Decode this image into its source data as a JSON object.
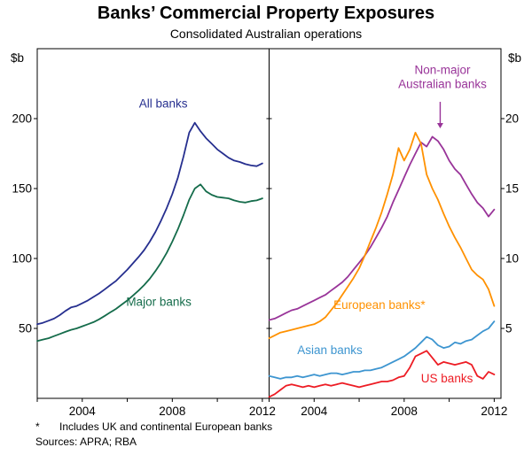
{
  "title": "Banks’ Commercial Property Exposures",
  "subtitle": "Consolidated Australian operations",
  "axis_units": {
    "left": "$b",
    "right": "$b"
  },
  "footnote": {
    "marker": "*",
    "text": "Includes UK and continental European banks"
  },
  "sources": "Sources: APRA; RBA",
  "chart_data": [
    {
      "type": "line",
      "panel": "left",
      "ylabel": "$b",
      "ylim": [
        0,
        250
      ],
      "yticks": [
        50,
        100,
        150,
        200
      ],
      "xticks_labeled": [
        2004,
        2008,
        2012
      ],
      "xticks_minor": [
        2002,
        2004,
        2006,
        2008,
        2010,
        2012
      ],
      "x": [
        2002,
        2002.25,
        2002.5,
        2002.75,
        2003,
        2003.25,
        2003.5,
        2003.75,
        2004,
        2004.25,
        2004.5,
        2004.75,
        2005,
        2005.25,
        2005.5,
        2005.75,
        2006,
        2006.25,
        2006.5,
        2006.75,
        2007,
        2007.25,
        2007.5,
        2007.75,
        2008,
        2008.25,
        2008.5,
        2008.75,
        2009,
        2009.25,
        2009.5,
        2009.75,
        2010,
        2010.25,
        2010.5,
        2010.75,
        2011,
        2011.25,
        2011.5,
        2011.75,
        2012
      ],
      "series": [
        {
          "name": "All banks",
          "color": "#262f8f",
          "values": [
            53,
            54,
            55.5,
            57,
            59.5,
            62.5,
            65,
            66,
            68,
            70,
            72.5,
            75,
            78,
            81,
            84,
            88,
            92,
            96.5,
            101,
            106,
            112,
            119,
            127,
            136,
            146,
            158,
            173,
            190,
            197,
            191,
            186,
            182,
            178,
            175,
            172,
            170,
            169,
            167.5,
            166.5,
            166,
            168
          ]
        },
        {
          "name": "Major banks",
          "color": "#156c4b",
          "values": [
            41,
            42,
            43,
            44.5,
            46,
            47.5,
            49,
            50,
            51.5,
            53,
            54.5,
            56.5,
            59,
            61.5,
            64,
            67,
            70,
            73.5,
            77,
            81,
            85.5,
            91,
            97,
            104,
            112,
            121,
            131,
            142,
            150,
            153,
            148,
            145.5,
            144,
            143.5,
            143,
            141.5,
            140.5,
            140,
            141,
            141.5,
            143
          ]
        }
      ],
      "labels": [
        {
          "text": "All banks",
          "x": 2007.6,
          "y": 208,
          "color": "#262f8f"
        },
        {
          "text": "Major banks",
          "x": 2007.4,
          "y": 66,
          "color": "#156c4b"
        }
      ]
    },
    {
      "type": "line",
      "panel": "right",
      "ylabel": "$b",
      "ylim": [
        0,
        25
      ],
      "yticks": [
        5,
        10,
        15,
        20
      ],
      "xticks_labeled": [
        2004,
        2008,
        2012
      ],
      "xticks_minor": [
        2002,
        2004,
        2006,
        2008,
        2010,
        2012
      ],
      "x": [
        2002,
        2002.25,
        2002.5,
        2002.75,
        2003,
        2003.25,
        2003.5,
        2003.75,
        2004,
        2004.25,
        2004.5,
        2004.75,
        2005,
        2005.25,
        2005.5,
        2005.75,
        2006,
        2006.25,
        2006.5,
        2006.75,
        2007,
        2007.25,
        2007.5,
        2007.75,
        2008,
        2008.25,
        2008.5,
        2008.75,
        2009,
        2009.25,
        2009.5,
        2009.75,
        2010,
        2010.25,
        2010.5,
        2010.75,
        2011,
        2011.25,
        2011.5,
        2011.75,
        2012
      ],
      "series": [
        {
          "name": "Non-major Australian banks",
          "color": "#993499",
          "values": [
            5.6,
            5.7,
            5.9,
            6.1,
            6.3,
            6.4,
            6.6,
            6.8,
            7,
            7.2,
            7.4,
            7.7,
            8,
            8.3,
            8.7,
            9.2,
            9.7,
            10.2,
            10.8,
            11.5,
            12.2,
            13,
            14,
            14.9,
            15.8,
            16.7,
            17.5,
            18.3,
            18,
            18.7,
            18.4,
            17.8,
            17,
            16.4,
            16,
            15.3,
            14.6,
            14,
            13.6,
            13,
            13.5
          ]
        },
        {
          "name": "European banks",
          "color": "#ff9100",
          "values": [
            4.3,
            4.5,
            4.7,
            4.8,
            4.9,
            5,
            5.1,
            5.2,
            5.3,
            5.5,
            5.8,
            6.3,
            6.8,
            7.4,
            8,
            8.6,
            9.3,
            10.2,
            11.2,
            12.2,
            13.3,
            14.6,
            16,
            17.9,
            17,
            17.8,
            19,
            18.2,
            16,
            15,
            14.2,
            13.2,
            12.3,
            11.5,
            10.8,
            10,
            9.2,
            8.8,
            8.5,
            7.8,
            6.6
          ]
        },
        {
          "name": "Asian banks",
          "color": "#3d95d0",
          "values": [
            1.6,
            1.5,
            1.4,
            1.5,
            1.5,
            1.6,
            1.5,
            1.6,
            1.7,
            1.6,
            1.7,
            1.8,
            1.8,
            1.7,
            1.8,
            1.9,
            1.9,
            2,
            2,
            2.1,
            2.2,
            2.4,
            2.6,
            2.8,
            3,
            3.3,
            3.6,
            4,
            4.4,
            4.2,
            3.8,
            3.6,
            3.7,
            4,
            3.9,
            4.1,
            4.2,
            4.5,
            4.8,
            5,
            5.5
          ]
        },
        {
          "name": "US banks",
          "color": "#ed1c24",
          "values": [
            0.1,
            0.3,
            0.6,
            0.9,
            1,
            0.9,
            0.8,
            0.9,
            0.8,
            0.9,
            1,
            0.9,
            1,
            1.1,
            1,
            0.9,
            0.8,
            0.9,
            1,
            1.1,
            1.2,
            1.2,
            1.3,
            1.5,
            1.6,
            2.2,
            3,
            3.2,
            3.4,
            2.9,
            2.4,
            2.6,
            2.5,
            2.4,
            2.5,
            2.6,
            2.4,
            1.6,
            1.4,
            1.9,
            1.7
          ]
        }
      ],
      "labels": [
        {
          "text": "European banks*",
          "x": 2006.9,
          "y": 6.4,
          "color": "#ff9100"
        },
        {
          "text": "Asian banks",
          "x": 2004.7,
          "y": 3.15,
          "color": "#3d95d0"
        },
        {
          "text": "US banks",
          "x": 2009.9,
          "y": 1.15,
          "color": "#ed1c24"
        }
      ],
      "annotation": {
        "lines": [
          "Non-major",
          "Australian banks"
        ],
        "color": "#993499",
        "x": 2009.7,
        "y": 23.2,
        "arrow": {
          "x": 2009.6,
          "y_from": 21.2,
          "y_to": 19.3
        }
      }
    }
  ]
}
